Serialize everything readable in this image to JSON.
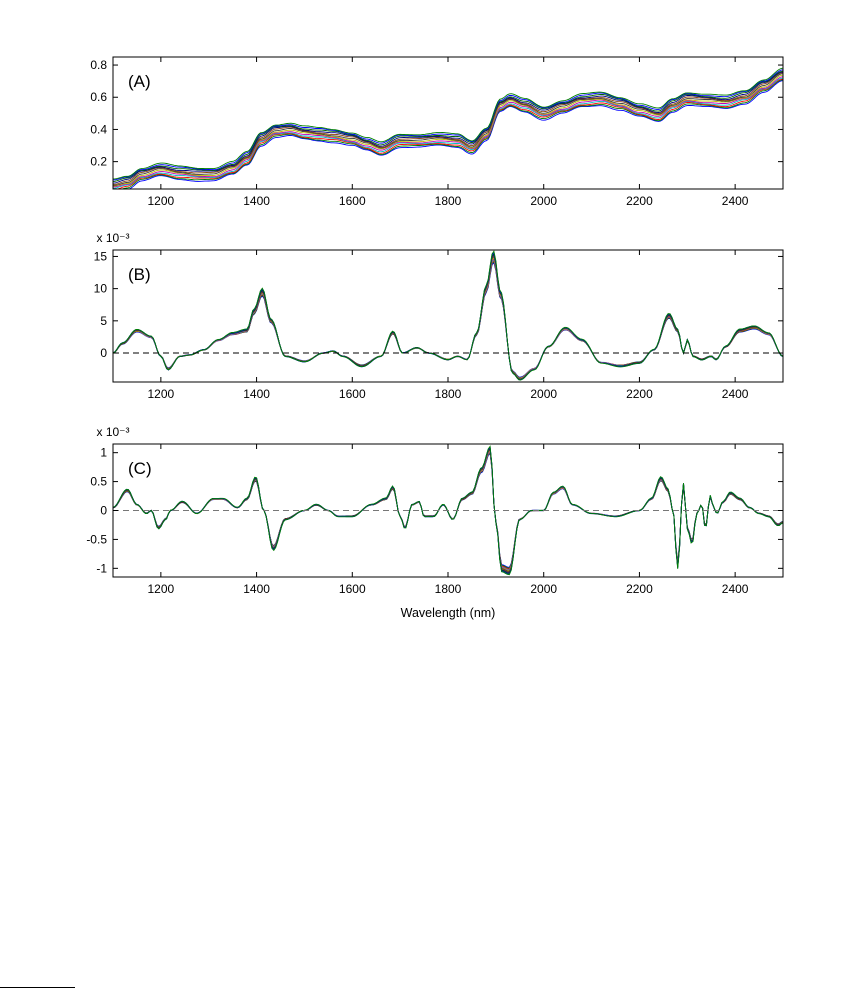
{
  "figure": {
    "xlabel": "Wavelength (nm)"
  },
  "series_colors": [
    "#0000ff",
    "#008000",
    "#ff0000",
    "#00bfbf",
    "#bf00bf",
    "#bfbf00",
    "#3f3f3f",
    "#8b4513",
    "#000080",
    "#006400"
  ],
  "chart_data": [
    {
      "id": "A",
      "type": "line",
      "label": "(A)",
      "exponent_label": "",
      "xlim": [
        1100,
        2500
      ],
      "ylim": [
        0.03,
        0.85
      ],
      "xticks": [
        1200,
        1400,
        1600,
        1800,
        2000,
        2200,
        2400
      ],
      "yticks": [
        0.2,
        0.4,
        0.6,
        0.8
      ],
      "ytick_labels": [
        "0.2",
        "0.4",
        "0.6",
        "0.8"
      ],
      "zero_line": false,
      "x": [
        1100,
        1130,
        1160,
        1200,
        1240,
        1280,
        1310,
        1350,
        1380,
        1410,
        1440,
        1470,
        1500,
        1530,
        1560,
        1600,
        1630,
        1660,
        1700,
        1740,
        1780,
        1820,
        1850,
        1880,
        1910,
        1930,
        1960,
        2000,
        2040,
        2080,
        2120,
        2160,
        2200,
        2240,
        2270,
        2300,
        2340,
        2380,
        2420,
        2460,
        2500
      ],
      "values": [
        0.05,
        0.07,
        0.12,
        0.15,
        0.13,
        0.12,
        0.12,
        0.16,
        0.22,
        0.34,
        0.39,
        0.4,
        0.38,
        0.37,
        0.36,
        0.34,
        0.31,
        0.28,
        0.33,
        0.33,
        0.34,
        0.33,
        0.29,
        0.37,
        0.55,
        0.58,
        0.55,
        0.5,
        0.54,
        0.58,
        0.59,
        0.56,
        0.52,
        0.49,
        0.55,
        0.59,
        0.58,
        0.57,
        0.6,
        0.67,
        0.74
      ],
      "spread": 0.08,
      "n_series": 12
    },
    {
      "id": "B",
      "type": "line",
      "label": "(B)",
      "exponent_label": "x 10⁻³",
      "xlim": [
        1100,
        2500
      ],
      "ylim": [
        -4.5,
        16
      ],
      "xticks": [
        1200,
        1400,
        1600,
        1800,
        2000,
        2200,
        2400
      ],
      "yticks": [
        0,
        5,
        10,
        15
      ],
      "ytick_labels": [
        "0",
        "5",
        "10",
        "15"
      ],
      "zero_line": true,
      "x": [
        1100,
        1120,
        1150,
        1180,
        1200,
        1215,
        1240,
        1260,
        1290,
        1320,
        1350,
        1380,
        1395,
        1412,
        1430,
        1460,
        1500,
        1540,
        1560,
        1580,
        1620,
        1660,
        1685,
        1705,
        1735,
        1760,
        1800,
        1820,
        1840,
        1860,
        1880,
        1895,
        1910,
        1935,
        1950,
        1980,
        2010,
        2045,
        2080,
        2120,
        2160,
        2200,
        2230,
        2262,
        2280,
        2292,
        2300,
        2312,
        2330,
        2350,
        2360,
        2380,
        2410,
        2440,
        2470,
        2500
      ],
      "values": [
        0,
        1.5,
        3.5,
        2.5,
        -0.5,
        -2.5,
        -0.5,
        -0.3,
        0.5,
        2.0,
        3.0,
        3.5,
        6.5,
        9.5,
        5.0,
        -0.5,
        -1.3,
        0,
        0.3,
        -0.5,
        -2.0,
        -0.5,
        3.2,
        0,
        0.8,
        0,
        -1.0,
        -0.5,
        -1.0,
        3.0,
        10.0,
        15.0,
        9.0,
        -3.0,
        -4.0,
        -2.5,
        1.0,
        3.8,
        2.0,
        -1.5,
        -2.0,
        -1.5,
        0.5,
        5.8,
        3.5,
        0,
        2.0,
        -0.5,
        -1.0,
        -0.5,
        -1.0,
        1.0,
        3.5,
        4.0,
        3.0,
        -0.5
      ],
      "spread": 0.9,
      "n_series": 12
    },
    {
      "id": "C",
      "type": "line",
      "label": "(C)",
      "exponent_label": "x 10⁻³",
      "xlim": [
        1100,
        2500
      ],
      "ylim": [
        -1.15,
        1.15
      ],
      "xticks": [
        1200,
        1400,
        1600,
        1800,
        2000,
        2200,
        2400
      ],
      "yticks": [
        -1,
        -0.5,
        0,
        0.5,
        1
      ],
      "ytick_labels": [
        "-1",
        "-0.5",
        "0",
        "0.5",
        "1"
      ],
      "zero_line": true,
      "x": [
        1100,
        1130,
        1150,
        1170,
        1180,
        1195,
        1210,
        1220,
        1245,
        1275,
        1310,
        1330,
        1360,
        1380,
        1398,
        1415,
        1435,
        1460,
        1500,
        1525,
        1550,
        1570,
        1600,
        1640,
        1670,
        1685,
        1700,
        1710,
        1725,
        1740,
        1750,
        1770,
        1790,
        1810,
        1830,
        1850,
        1870,
        1888,
        1900,
        1912,
        1928,
        1950,
        1975,
        2000,
        2020,
        2040,
        2060,
        2100,
        2150,
        2200,
        2225,
        2245,
        2260,
        2270,
        2280,
        2292,
        2300,
        2310,
        2320,
        2330,
        2338,
        2348,
        2355,
        2362,
        2375,
        2390,
        2410,
        2430,
        2450,
        2470,
        2490,
        2500
      ],
      "values": [
        0.05,
        0.35,
        0.1,
        -0.05,
        0.0,
        -0.3,
        -0.15,
        0.0,
        0.15,
        -0.05,
        0.2,
        0.2,
        0.05,
        0.2,
        0.55,
        0.0,
        -0.65,
        -0.15,
        0.0,
        0.1,
        0.0,
        -0.1,
        -0.1,
        0.1,
        0.2,
        0.4,
        -0.1,
        -0.3,
        0.1,
        0.15,
        -0.1,
        -0.1,
        0.1,
        -0.15,
        0.2,
        0.3,
        0.7,
        1.05,
        -0.2,
        -1.0,
        -1.05,
        -0.15,
        0.0,
        0.0,
        0.3,
        0.4,
        0.1,
        -0.05,
        -0.1,
        0.0,
        0.2,
        0.55,
        0.35,
        0.0,
        -0.95,
        0.45,
        -0.3,
        -0.55,
        -0.05,
        0.1,
        -0.3,
        0.25,
        0.05,
        -0.05,
        0.15,
        0.3,
        0.2,
        0.05,
        -0.05,
        -0.1,
        -0.25,
        -0.2
      ],
      "spread": 0.09,
      "n_series": 12
    }
  ]
}
